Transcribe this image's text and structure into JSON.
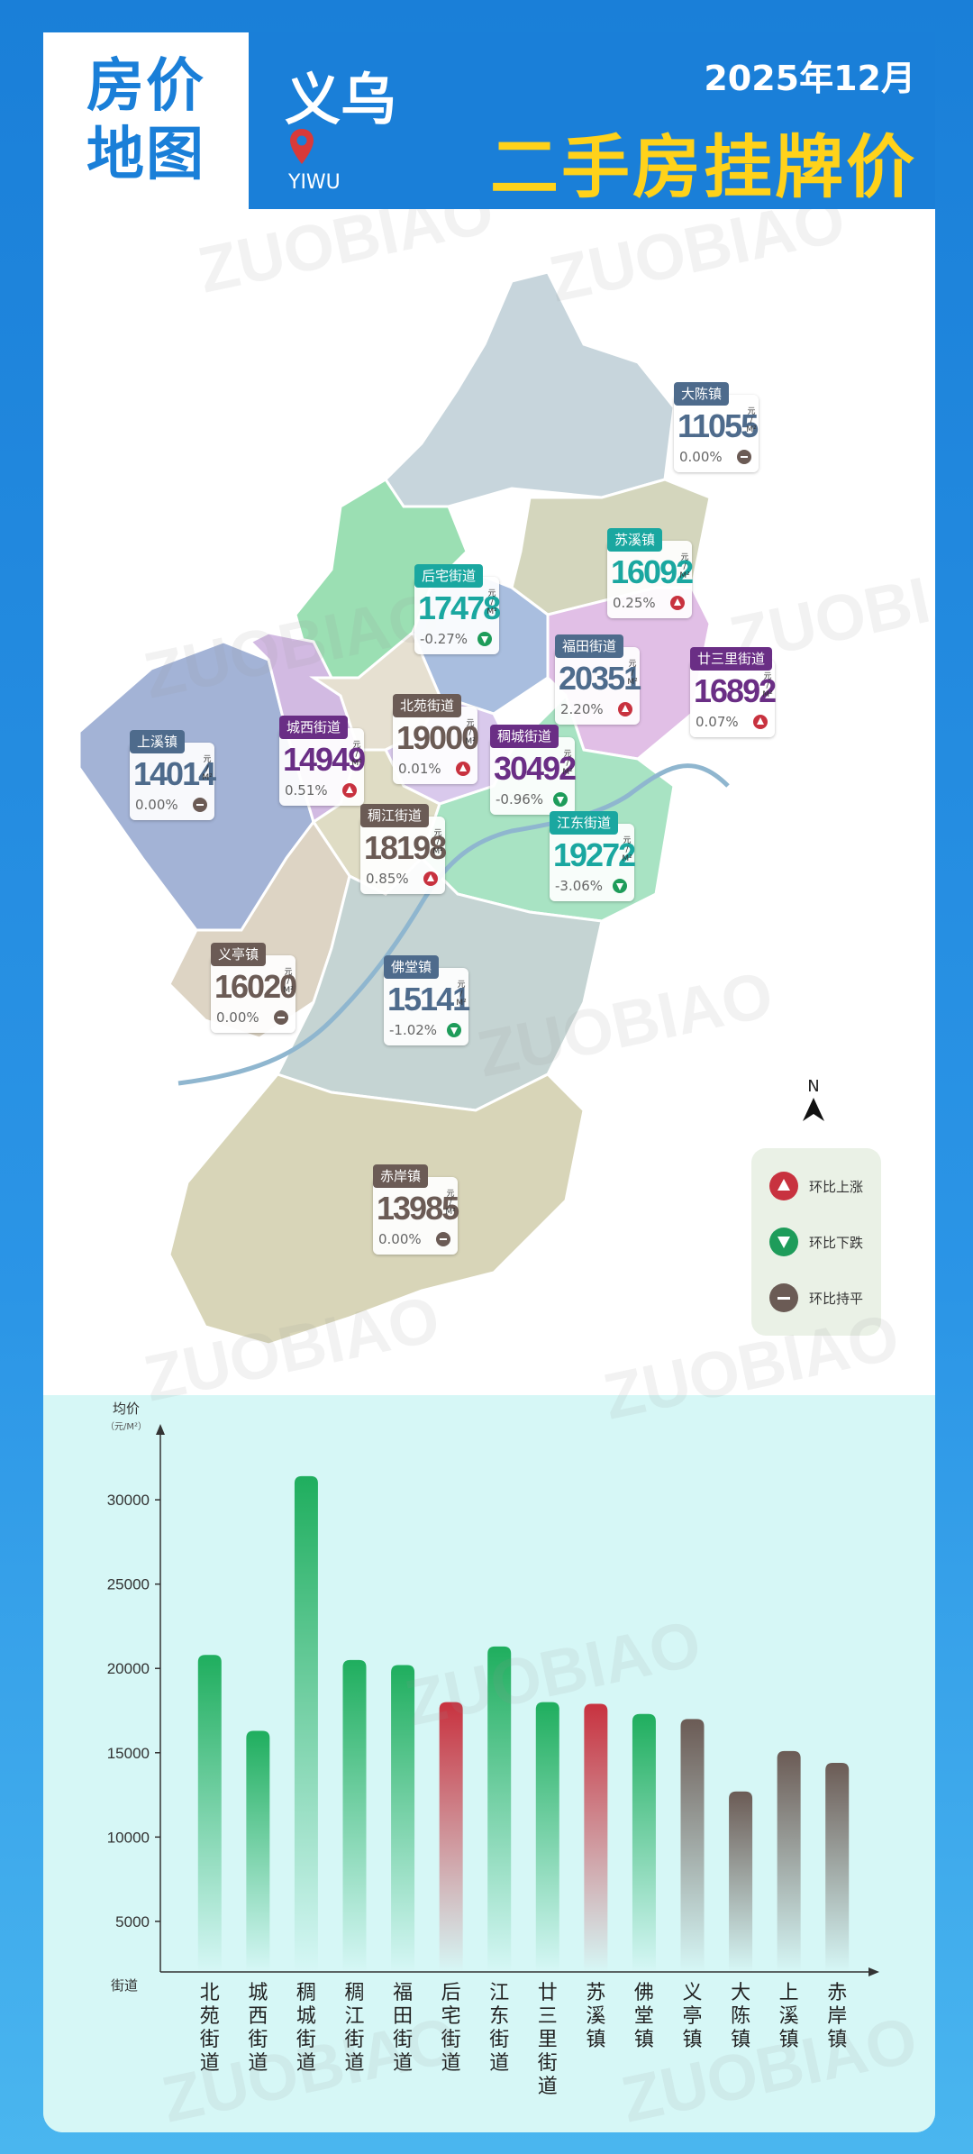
{
  "header": {
    "title_line1": "房价",
    "title_line2": "地图",
    "city": "义乌",
    "city_en": "YIWU",
    "date": "2025年12月",
    "subtitle": "二手房挂牌价"
  },
  "map": {
    "north": "N",
    "unit_top": "元",
    "unit_bottom": "M²",
    "labels": [
      {
        "name": "大陈镇",
        "price": "11055",
        "change": "0.00%",
        "trend": "flat",
        "color": "#4e6b8c"
      },
      {
        "name": "苏溪镇",
        "price": "16092",
        "change": "0.25%",
        "trend": "up",
        "color": "#1aa7a0"
      },
      {
        "name": "后宅街道",
        "price": "17478",
        "change": "-0.27%",
        "trend": "down",
        "color": "#1aa7a0"
      },
      {
        "name": "福田街道",
        "price": "20351",
        "change": "2.20%",
        "trend": "up",
        "color": "#4e6b8c"
      },
      {
        "name": "廿三里街道",
        "price": "16892",
        "change": "0.07%",
        "trend": "up",
        "color": "#6a2e85"
      },
      {
        "name": "上溪镇",
        "price": "14014",
        "change": "0.00%",
        "trend": "flat",
        "color": "#4e6b8c"
      },
      {
        "name": "城西街道",
        "price": "14949",
        "change": "0.51%",
        "trend": "up",
        "color": "#6a2e85"
      },
      {
        "name": "北苑街道",
        "price": "19000",
        "change": "0.01%",
        "trend": "up",
        "color": "#6b5b55"
      },
      {
        "name": "稠城街道",
        "price": "30492",
        "change": "-0.96%",
        "trend": "down",
        "color": "#6a2e85"
      },
      {
        "name": "稠江街道",
        "price": "18198",
        "change": "0.85%",
        "trend": "up",
        "color": "#6b5b55"
      },
      {
        "name": "江东街道",
        "price": "19272",
        "change": "-3.06%",
        "trend": "down",
        "color": "#1aa7a0"
      },
      {
        "name": "义亭镇",
        "price": "16020",
        "change": "0.00%",
        "trend": "flat",
        "color": "#6b5b55"
      },
      {
        "name": "佛堂镇",
        "price": "15141",
        "change": "-1.02%",
        "trend": "down",
        "color": "#4e6b8c"
      },
      {
        "name": "赤岸镇",
        "price": "13985",
        "change": "0.00%",
        "trend": "flat",
        "color": "#6b5b55"
      }
    ],
    "legend": [
      {
        "label": "环比上涨",
        "trend": "up"
      },
      {
        "label": "环比下跌",
        "trend": "down"
      },
      {
        "label": "环比持平",
        "trend": "flat"
      }
    ],
    "colors": {
      "up": "#c8323f",
      "down": "#1e9c5a",
      "flat": "#6b5b55"
    }
  },
  "watermark": "ZUOBIAO",
  "chart_data": {
    "type": "bar",
    "ylabel": "均价",
    "yunit": "（元/M²）",
    "xlabel": "街道",
    "ylim": [
      2000,
      33000
    ],
    "yticks": [
      5000,
      10000,
      15000,
      20000,
      25000,
      30000
    ],
    "categories": [
      "北苑街道",
      "城西街道",
      "稠城街道",
      "稠江街道",
      "福田街道",
      "后宅街道",
      "江东街道",
      "廿三里街道",
      "苏溪镇",
      "佛堂镇",
      "义亭镇",
      "大陈镇",
      "上溪镇",
      "赤岸镇"
    ],
    "values": [
      20800,
      16300,
      31400,
      20500,
      20200,
      18000,
      21300,
      18000,
      17900,
      17300,
      17000,
      12700,
      15100,
      14400
    ],
    "bar_colors": [
      "#1fae5e",
      "#1fae5e",
      "#1fae5e",
      "#1fae5e",
      "#1fae5e",
      "#c8323f",
      "#1fae5e",
      "#1fae5e",
      "#c8323f",
      "#1fae5e",
      "#6b5b55",
      "#6b5b55",
      "#6b5b55",
      "#6b5b55"
    ]
  }
}
